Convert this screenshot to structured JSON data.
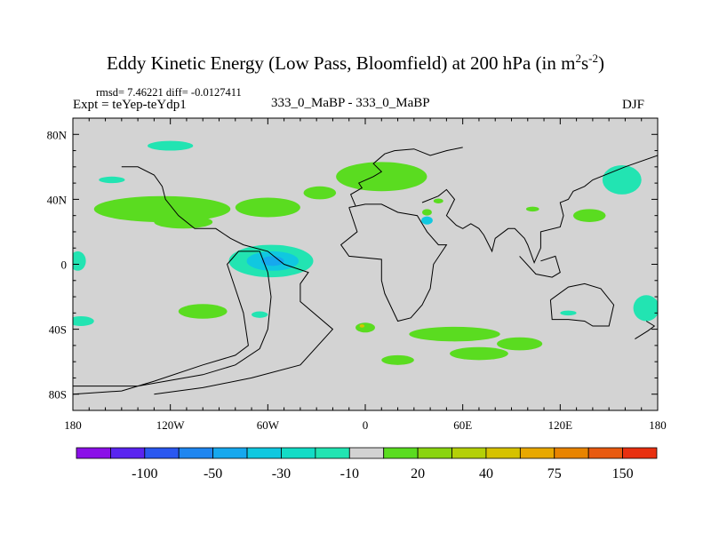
{
  "header": {
    "title": "Eddy Kinetic Energy (Low Pass, Bloomfield) at 200 hPa (in m",
    "title_sup1": "2",
    "title_mid": "s",
    "title_sup2": "-2",
    "title_end": ")",
    "stats": "rmsd= 7.46221 diff= -0.0127411",
    "experiment": "Expt = teYep-teYdp1",
    "case": "333_0_MaBP - 333_0_MaBP",
    "season": "DJF"
  },
  "chart_data": {
    "type": "heatmap",
    "title": "Eddy Kinetic Energy (Low Pass, Bloomfield) at 200 hPa (in m^2s^-2)",
    "projection": "cylindrical equidistant",
    "xlim": [
      -180,
      180
    ],
    "ylim": [
      -90,
      90
    ],
    "x_ticks": [
      {
        "value": -180,
        "label": "180"
      },
      {
        "value": -120,
        "label": "120W"
      },
      {
        "value": -60,
        "label": "60W"
      },
      {
        "value": 0,
        "label": "0"
      },
      {
        "value": 60,
        "label": "60E"
      },
      {
        "value": 120,
        "label": "120E"
      },
      {
        "value": 180,
        "label": "180"
      }
    ],
    "y_ticks": [
      {
        "value": 80,
        "label": "80N"
      },
      {
        "value": 40,
        "label": "40N"
      },
      {
        "value": 0,
        "label": "0"
      },
      {
        "value": -40,
        "label": "40S"
      },
      {
        "value": -80,
        "label": "80S"
      }
    ],
    "background_color": "#d3d3d3",
    "colorbar": {
      "colors": [
        "#8b10e8",
        "#5a24f0",
        "#2a58f0",
        "#1f86f0",
        "#16a8ee",
        "#10c8e0",
        "#12dcc6",
        "#22e4b2",
        "#d2d2d2",
        "#5adc20",
        "#8ad410",
        "#b4d008",
        "#d6c200",
        "#e8a800",
        "#e88400",
        "#e85a10",
        "#e83010"
      ],
      "labels": [
        {
          "after_box": 2,
          "label": "-100"
        },
        {
          "after_box": 4,
          "label": "-50"
        },
        {
          "after_box": 6,
          "label": "-30"
        },
        {
          "after_box": 8,
          "label": "-10"
        },
        {
          "after_box": 10,
          "label": "20"
        },
        {
          "after_box": 12,
          "label": "40"
        },
        {
          "after_box": 14,
          "label": "75"
        },
        {
          "after_box": 16,
          "label": "150"
        }
      ]
    },
    "anomaly_regions": [
      {
        "lon": -120,
        "lat": 73,
        "rx": 14,
        "ry": 3,
        "color": "#22e4b2"
      },
      {
        "lon": -156,
        "lat": 52,
        "rx": 8,
        "ry": 2,
        "color": "#22e4b2"
      },
      {
        "lon": -125,
        "lat": 34,
        "rx": 42,
        "ry": 8,
        "color": "#5adc20"
      },
      {
        "lon": -60,
        "lat": 35,
        "rx": 20,
        "ry": 6,
        "color": "#5adc20"
      },
      {
        "lon": -112,
        "lat": 26,
        "rx": 18,
        "ry": 4,
        "color": "#5adc20"
      },
      {
        "lon": -28,
        "lat": 44,
        "rx": 10,
        "ry": 4,
        "color": "#5adc20"
      },
      {
        "lon": 10,
        "lat": 54,
        "rx": 28,
        "ry": 9,
        "color": "#5adc20"
      },
      {
        "lon": 38,
        "lat": 32,
        "rx": 3,
        "ry": 2,
        "color": "#5adc20"
      },
      {
        "lon": 45,
        "lat": 39,
        "rx": 3,
        "ry": 1.5,
        "color": "#5adc20"
      },
      {
        "lon": 38,
        "lat": 27,
        "rx": 3.5,
        "ry": 2.5,
        "color": "#10c8e0"
      },
      {
        "lon": 138,
        "lat": 30,
        "rx": 10,
        "ry": 4,
        "color": "#5adc20"
      },
      {
        "lon": 103,
        "lat": 34,
        "rx": 4,
        "ry": 1.5,
        "color": "#5adc20"
      },
      {
        "lon": 158,
        "lat": 52,
        "rx": 12,
        "ry": 9,
        "color": "#22e4b2"
      },
      {
        "lon": -177,
        "lat": 2,
        "rx": 5,
        "ry": 6,
        "color": "#22e4b2"
      },
      {
        "lon": -58,
        "lat": 2,
        "rx": 26,
        "ry": 10,
        "color": "#22e4b2"
      },
      {
        "lon": -57,
        "lat": 2,
        "rx": 16,
        "ry": 6,
        "color": "#10c8e0"
      },
      {
        "lon": -57,
        "lat": 2,
        "rx": 7,
        "ry": 3,
        "color": "#16a8ee"
      },
      {
        "lon": -100,
        "lat": -29,
        "rx": 15,
        "ry": 4.5,
        "color": "#5adc20"
      },
      {
        "lon": -175,
        "lat": -35,
        "rx": 8,
        "ry": 3,
        "color": "#22e4b2"
      },
      {
        "lon": -65,
        "lat": -31,
        "rx": 5,
        "ry": 2,
        "color": "#22e4b2"
      },
      {
        "lon": 0,
        "lat": -39,
        "rx": 6,
        "ry": 3,
        "color": "#5adc20"
      },
      {
        "lon": -2,
        "lat": -38,
        "rx": 1.5,
        "ry": 1,
        "color": "#d6c200"
      },
      {
        "lon": 55,
        "lat": -43,
        "rx": 28,
        "ry": 4.5,
        "color": "#5adc20"
      },
      {
        "lon": 95,
        "lat": -49,
        "rx": 14,
        "ry": 4,
        "color": "#5adc20"
      },
      {
        "lon": 70,
        "lat": -55,
        "rx": 18,
        "ry": 4,
        "color": "#5adc20"
      },
      {
        "lon": 20,
        "lat": -59,
        "rx": 10,
        "ry": 3,
        "color": "#5adc20"
      },
      {
        "lon": 125,
        "lat": -30,
        "rx": 5,
        "ry": 1.5,
        "color": "#22e4b2"
      },
      {
        "lon": 173,
        "lat": -27,
        "rx": 8,
        "ry": 8,
        "color": "#22e4b2"
      }
    ],
    "coastlines": [
      [
        [
          -180,
          -75
        ],
        [
          -140,
          -75
        ],
        [
          -100,
          -68
        ],
        [
          -80,
          -62
        ],
        [
          -65,
          -52
        ],
        [
          -60,
          -40
        ],
        [
          -58,
          -20
        ],
        [
          -60,
          -5
        ],
        [
          -65,
          8
        ],
        [
          -78,
          8
        ],
        [
          -85,
          0
        ],
        [
          -80,
          -15
        ],
        [
          -75,
          -30
        ],
        [
          -72,
          -50
        ],
        [
          -80,
          -56
        ],
        [
          -100,
          -62
        ],
        [
          -130,
          -72
        ],
        [
          -150,
          -78
        ],
        [
          -180,
          -80
        ]
      ],
      [
        [
          -130,
          -80
        ],
        [
          -100,
          -76
        ],
        [
          -70,
          -70
        ],
        [
          -40,
          -62
        ],
        [
          -20,
          -40
        ],
        [
          -40,
          -23
        ],
        [
          -40,
          -12
        ],
        [
          -35,
          -5
        ],
        [
          -50,
          0
        ],
        [
          -60,
          8
        ],
        [
          -75,
          12
        ],
        [
          -83,
          16
        ],
        [
          -92,
          22
        ],
        [
          -105,
          22
        ],
        [
          -115,
          30
        ],
        [
          -123,
          40
        ],
        [
          -125,
          48
        ],
        [
          -130,
          55
        ],
        [
          -140,
          60
        ],
        [
          -150,
          60
        ]
      ],
      [
        [
          -10,
          35
        ],
        [
          -5,
          20
        ],
        [
          -15,
          12
        ],
        [
          -10,
          5
        ],
        [
          10,
          3
        ],
        [
          10,
          -10
        ],
        [
          12,
          -18
        ],
        [
          20,
          -35
        ],
        [
          28,
          -33
        ],
        [
          35,
          -25
        ],
        [
          40,
          -15
        ],
        [
          42,
          0
        ],
        [
          50,
          12
        ],
        [
          45,
          12
        ],
        [
          38,
          20
        ],
        [
          32,
          30
        ],
        [
          20,
          32
        ],
        [
          10,
          37
        ],
        [
          0,
          37
        ],
        [
          -5,
          36
        ],
        [
          -10,
          35
        ]
      ],
      [
        [
          -6,
          36
        ],
        [
          -9,
          43
        ],
        [
          -2,
          47
        ],
        [
          -4,
          50
        ],
        [
          5,
          54
        ],
        [
          10,
          57
        ],
        [
          5,
          62
        ],
        [
          12,
          68
        ],
        [
          18,
          70
        ],
        [
          30,
          71
        ],
        [
          40,
          67
        ],
        [
          50,
          70
        ],
        [
          60,
          72
        ]
      ],
      [
        [
          35,
          38
        ],
        [
          45,
          42
        ],
        [
          50,
          46
        ],
        [
          55,
          40
        ],
        [
          50,
          30
        ],
        [
          56,
          24
        ],
        [
          60,
          22
        ],
        [
          65,
          25
        ],
        [
          70,
          22
        ],
        [
          73,
          18
        ],
        [
          78,
          8
        ],
        [
          80,
          16
        ],
        [
          88,
          22
        ],
        [
          92,
          22
        ],
        [
          98,
          16
        ],
        [
          100,
          12
        ],
        [
          104,
          1
        ],
        [
          108,
          10
        ],
        [
          108,
          20
        ],
        [
          120,
          23
        ],
        [
          122,
          30
        ],
        [
          120,
          38
        ],
        [
          125,
          40
        ],
        [
          128,
          45
        ],
        [
          135,
          48
        ],
        [
          140,
          52
        ],
        [
          160,
          60
        ],
        [
          180,
          67
        ]
      ],
      [
        [
          114,
          -22
        ],
        [
          115,
          -34
        ],
        [
          125,
          -34
        ],
        [
          135,
          -35
        ],
        [
          140,
          -38
        ],
        [
          150,
          -38
        ],
        [
          153,
          -25
        ],
        [
          145,
          -15
        ],
        [
          135,
          -12
        ],
        [
          125,
          -14
        ],
        [
          114,
          -22
        ]
      ],
      [
        [
          166,
          -46
        ],
        [
          174,
          -41
        ],
        [
          178,
          -38
        ],
        [
          173,
          -35
        ]
      ],
      [
        [
          95,
          5
        ],
        [
          105,
          -6
        ],
        [
          115,
          -8
        ],
        [
          120,
          -5
        ],
        [
          117,
          5
        ],
        [
          108,
          2
        ]
      ]
    ]
  }
}
